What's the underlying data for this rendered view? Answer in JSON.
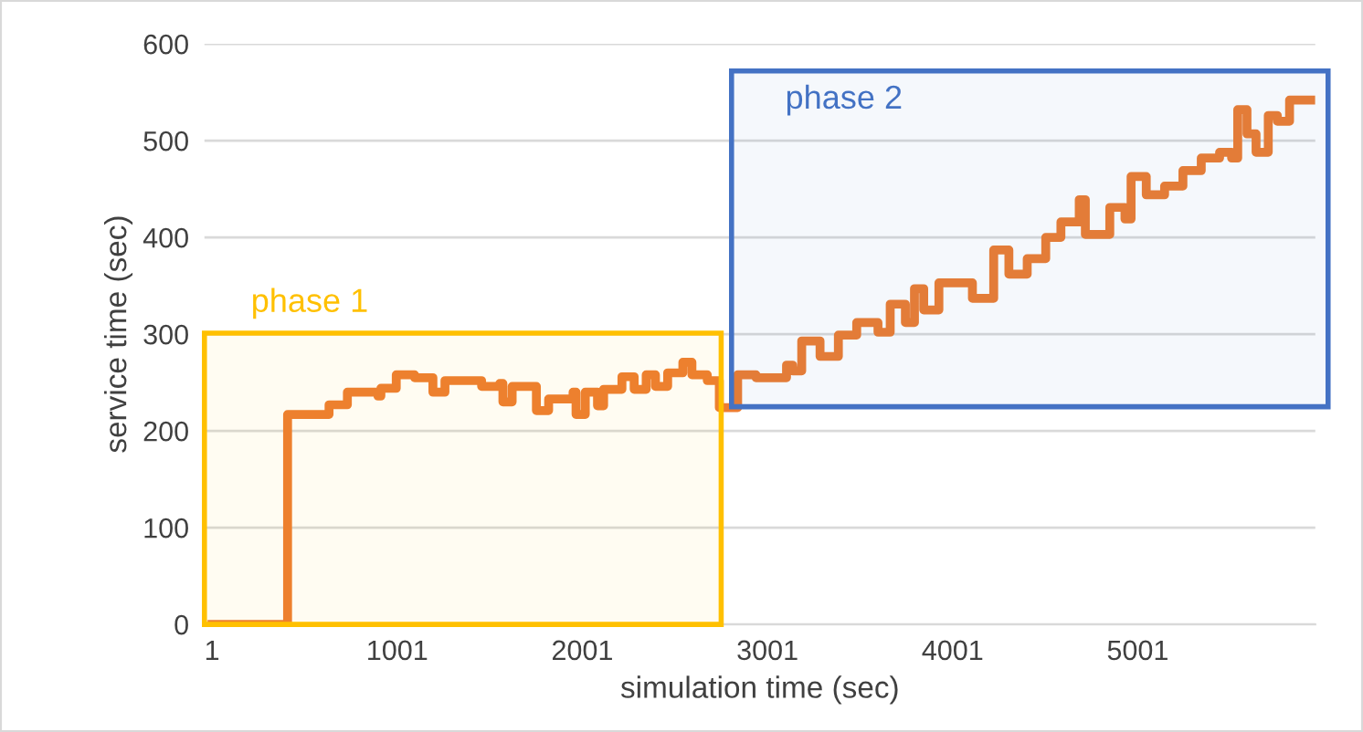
{
  "chart_data": {
    "type": "step",
    "xlabel": "simulation time (sec)",
    "ylabel": "service time (sec)",
    "x": [
      1,
      409,
      409,
      633,
      732,
      897,
      913,
      996,
      1095,
      1194,
      1259,
      1457,
      1555,
      1572,
      1622,
      1753,
      1819,
      1951,
      1967,
      2017,
      2083,
      2116,
      2215,
      2281,
      2346,
      2396,
      2462,
      2544,
      2593,
      2676,
      2741,
      2840,
      2939,
      3104,
      3137,
      3186,
      3285,
      3384,
      3483,
      3598,
      3664,
      3746,
      3795,
      3845,
      3927,
      4108,
      4223,
      4305,
      4404,
      4504,
      4586,
      4685,
      4718,
      4850,
      4932,
      4965,
      5047,
      5146,
      5245,
      5344,
      5443,
      5508,
      5541,
      5591,
      5640,
      5706,
      5755,
      5821,
      5936
    ],
    "series": [
      {
        "color": "#ed7d31",
        "values": [
          0,
          0,
          217,
          227,
          240,
          236,
          244,
          258,
          255,
          240,
          252,
          246,
          249,
          230,
          246,
          221,
          233,
          240,
          217,
          240,
          226,
          243,
          256,
          243,
          258,
          246,
          260,
          271,
          258,
          252,
          224,
          258,
          255,
          268,
          262,
          293,
          277,
          299,
          312,
          302,
          331,
          312,
          347,
          325,
          353,
          337,
          387,
          362,
          378,
          400,
          416,
          439,
          403,
          431,
          419,
          463,
          444,
          453,
          469,
          482,
          488,
          482,
          532,
          507,
          488,
          526,
          520,
          542,
          542
        ]
      }
    ],
    "xlim": [
      -40,
      5960
    ],
    "ylim": [
      0,
      600
    ],
    "xticks": [
      1,
      1001,
      2001,
      3001,
      4001,
      5001
    ],
    "yticks": [
      0,
      100,
      200,
      300,
      400,
      500,
      600
    ],
    "grid": "y",
    "legend": false,
    "bands": [
      {
        "axis": "x",
        "from": -40,
        "to": 2751,
        "label": "phase 1",
        "color": "#ffc000"
      },
      {
        "axis": "x",
        "from": 2807,
        "to": 6029,
        "label": "phase 2",
        "color": "#4472c4"
      }
    ]
  }
}
